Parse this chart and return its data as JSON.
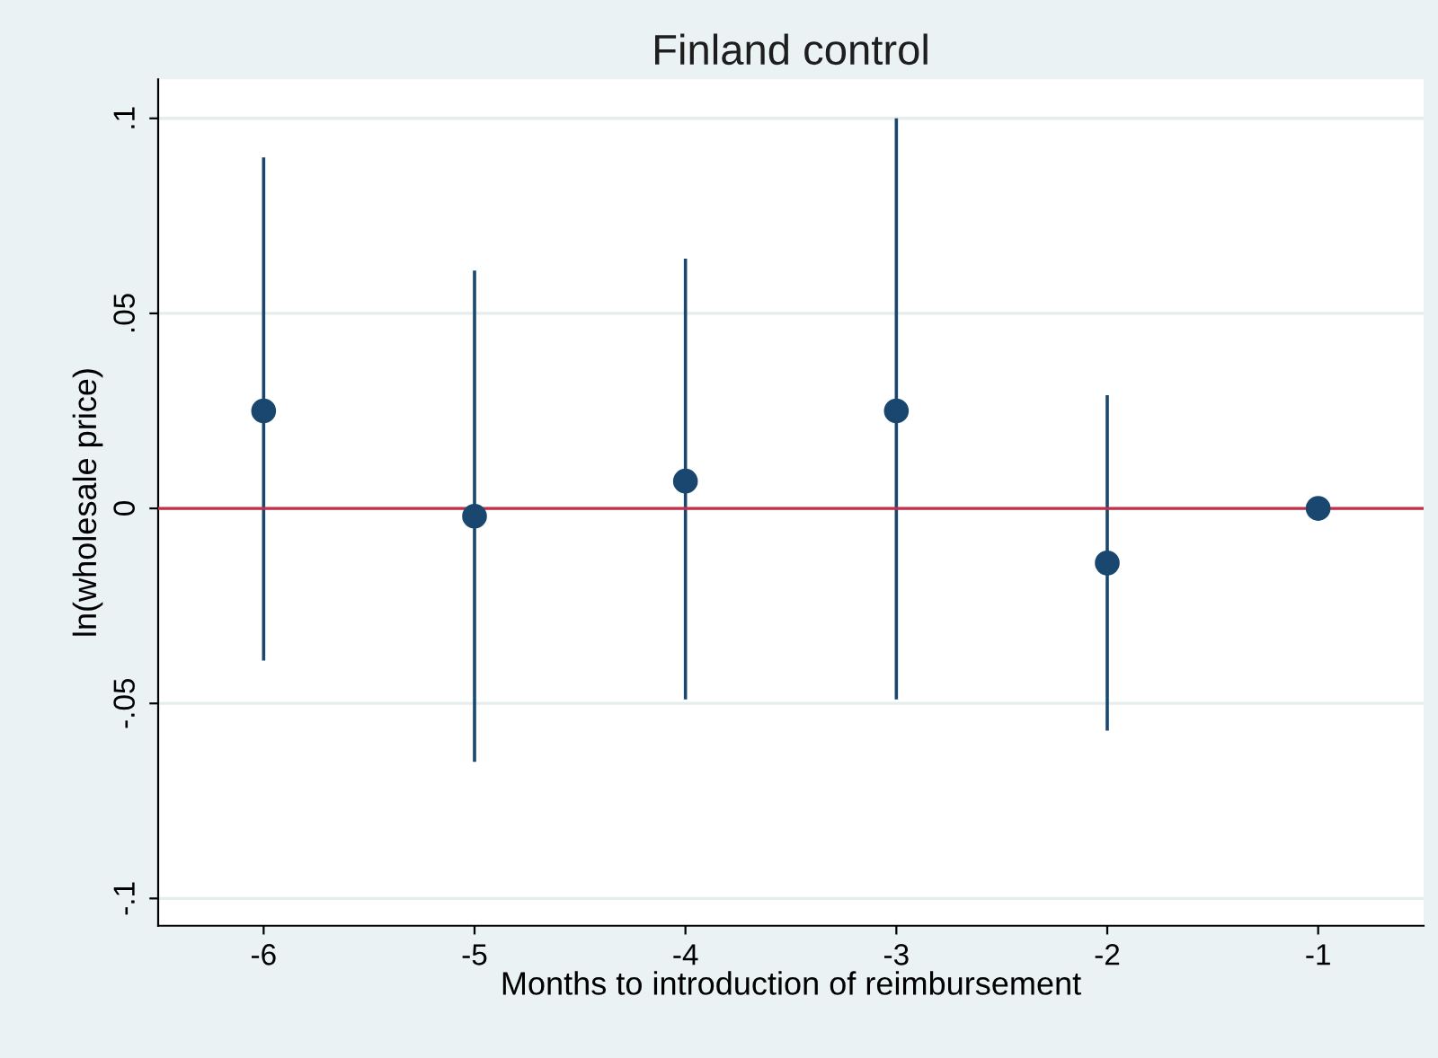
{
  "chart_data": {
    "type": "scatter",
    "title": "Finland control",
    "xlabel": "Months to introduction of reimbursement",
    "ylabel": "ln(wholesale price)",
    "x": [
      -6,
      -5,
      -4,
      -3,
      -2,
      -1
    ],
    "series": [
      {
        "color": "#1a476f",
        "values": [
          0.025,
          -0.002,
          0.007,
          0.025,
          -0.014,
          0
        ],
        "errors": [
          [
            -0.039,
            0.09
          ],
          [
            -0.065,
            0.061
          ],
          [
            -0.049,
            0.064
          ],
          [
            -0.049,
            0.1
          ],
          [
            -0.057,
            0.029
          ],
          null
        ]
      }
    ],
    "xlim": [
      -6.5,
      -0.5
    ],
    "xticks": [
      -6,
      -5,
      -4,
      -3,
      -2,
      -1
    ],
    "ylim": [
      -0.107,
      0.11
    ],
    "yticks": [
      {
        "value": -0.1,
        "label": "-.1"
      },
      {
        "value": -0.05,
        "label": "-.05"
      },
      {
        "value": 0,
        "label": "0"
      },
      {
        "value": 0.05,
        "label": ".05"
      },
      {
        "value": 0.1,
        "label": ".1"
      }
    ],
    "ref_lines": [
      {
        "axis": "y",
        "value": 0,
        "color": "#c0304a"
      }
    ],
    "grid": "y",
    "marker": "circle"
  }
}
